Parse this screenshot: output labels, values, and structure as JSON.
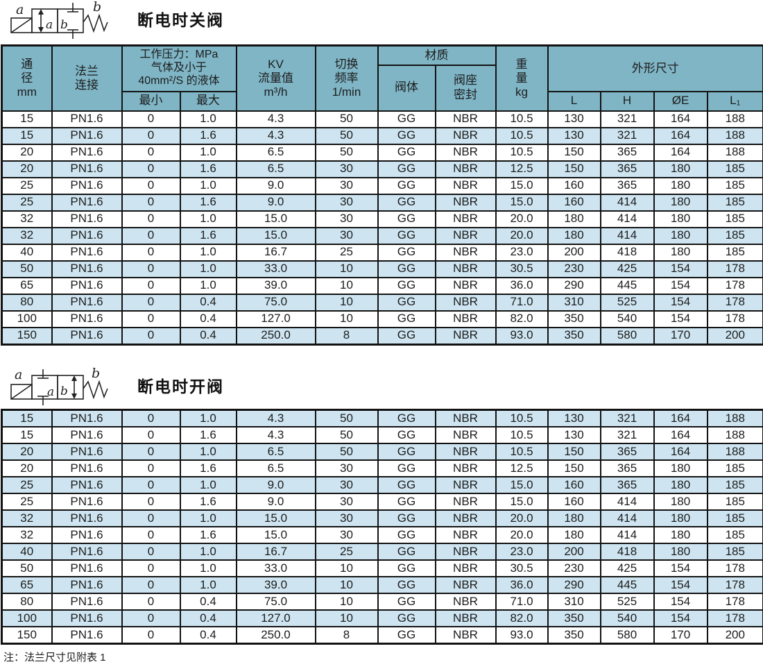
{
  "sections": [
    {
      "title": "断电时关阀",
      "symbol": "solenoid-valve-closed-when-deenergized",
      "labels": {
        "coil": "a",
        "spring": "b",
        "pos_a": "a",
        "pos_b": "b"
      }
    },
    {
      "title": "断电时开阀",
      "symbol": "solenoid-valve-open-when-deenergized",
      "labels": {
        "coil": "a",
        "spring": "b",
        "pos_a": "a",
        "pos_b": "b"
      }
    }
  ],
  "table_header": {
    "dn": "通\n径\nmm",
    "flange": "法兰\n连接",
    "pressure": "工作压力：MPa\n气体及小于\n40mm²/S 的液体",
    "min": "最小",
    "max": "最大",
    "kv": "KV\n流量值\nm³/h",
    "freq": "切换\n频率\n1/min",
    "material": "材质",
    "body": "阀体",
    "seat": "阀座\n密封",
    "weight": "重\n量\nkg",
    "dims": "外形尺寸",
    "L": "L",
    "H": "H",
    "OE": "ØE",
    "L1": "L₁"
  },
  "rows": [
    [
      "15",
      "PN1.6",
      "0",
      "1.0",
      "4.3",
      "50",
      "GG",
      "NBR",
      "10.5",
      "130",
      "321",
      "164",
      "188"
    ],
    [
      "15",
      "PN1.6",
      "0",
      "1.6",
      "4.3",
      "50",
      "GG",
      "NBR",
      "10.5",
      "130",
      "321",
      "164",
      "188"
    ],
    [
      "20",
      "PN1.6",
      "0",
      "1.0",
      "6.5",
      "50",
      "GG",
      "NBR",
      "10.5",
      "150",
      "365",
      "164",
      "188"
    ],
    [
      "20",
      "PN1.6",
      "0",
      "1.6",
      "6.5",
      "30",
      "GG",
      "NBR",
      "12.5",
      "150",
      "365",
      "180",
      "185"
    ],
    [
      "25",
      "PN1.6",
      "0",
      "1.0",
      "9.0",
      "30",
      "GG",
      "NBR",
      "15.0",
      "160",
      "365",
      "180",
      "185"
    ],
    [
      "25",
      "PN1.6",
      "0",
      "1.6",
      "9.0",
      "30",
      "GG",
      "NBR",
      "15.0",
      "160",
      "414",
      "180",
      "185"
    ],
    [
      "32",
      "PN1.6",
      "0",
      "1.0",
      "15.0",
      "30",
      "GG",
      "NBR",
      "20.0",
      "180",
      "414",
      "180",
      "185"
    ],
    [
      "32",
      "PN1.6",
      "0",
      "1.6",
      "15.0",
      "30",
      "GG",
      "NBR",
      "20.0",
      "180",
      "414",
      "180",
      "185"
    ],
    [
      "40",
      "PN1.6",
      "0",
      "1.0",
      "16.7",
      "25",
      "GG",
      "NBR",
      "23.0",
      "200",
      "418",
      "180",
      "185"
    ],
    [
      "50",
      "PN1.6",
      "0",
      "1.0",
      "33.0",
      "10",
      "GG",
      "NBR",
      "30.5",
      "230",
      "425",
      "154",
      "178"
    ],
    [
      "65",
      "PN1.6",
      "0",
      "1.0",
      "39.0",
      "10",
      "GG",
      "NBR",
      "36.0",
      "290",
      "445",
      "154",
      "178"
    ],
    [
      "80",
      "PN1.6",
      "0",
      "0.4",
      "75.0",
      "10",
      "GG",
      "NBR",
      "71.0",
      "310",
      "525",
      "154",
      "178"
    ],
    [
      "100",
      "PN1.6",
      "0",
      "0.4",
      "127.0",
      "10",
      "GG",
      "NBR",
      "82.0",
      "350",
      "540",
      "154",
      "178"
    ],
    [
      "150",
      "PN1.6",
      "0",
      "0.4",
      "250.0",
      "8",
      "GG",
      "NBR",
      "93.0",
      "350",
      "580",
      "170",
      "200"
    ]
  ],
  "note": "注：法兰尺寸见附表 1",
  "colors": {
    "header_bg": "#7fb5c5",
    "row_alt_bg": "#cee5f1",
    "border": "#121212"
  }
}
